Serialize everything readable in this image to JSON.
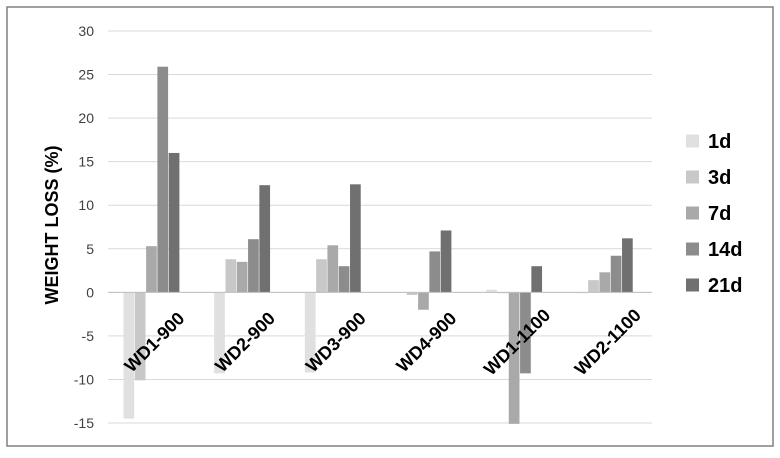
{
  "chart_data": {
    "type": "bar",
    "title": "",
    "xlabel": "",
    "ylabel": "WEIGHT LOSS (%)",
    "ylim": [
      -15,
      30
    ],
    "yticks": [
      -15,
      -10,
      -5,
      0,
      5,
      10,
      15,
      20,
      25,
      30
    ],
    "grid": true,
    "legend_position": "right",
    "categories": [
      "WD1-900",
      "WD2-900",
      "WD3-900",
      "WD4-900",
      "WD1-1100",
      "WD2-1100"
    ],
    "series": [
      {
        "name": "1d",
        "color": "#e0e0e0",
        "values": [
          -14.5,
          -9.3,
          -9.2,
          0,
          0.3,
          -0.1
        ]
      },
      {
        "name": "3d",
        "color": "#c8c8c8",
        "values": [
          -10.1,
          3.8,
          3.8,
          -0.3,
          -0.1,
          1.4
        ]
      },
      {
        "name": "7d",
        "color": "#a9a9a9",
        "values": [
          5.3,
          3.5,
          5.4,
          -2.0,
          -15.1,
          2.3
        ]
      },
      {
        "name": "14d",
        "color": "#8c8c8c",
        "values": [
          25.9,
          6.1,
          3.0,
          4.7,
          -9.3,
          4.2
        ]
      },
      {
        "name": "21d",
        "color": "#707070",
        "values": [
          16.0,
          12.3,
          12.4,
          7.1,
          3.0,
          6.2
        ]
      }
    ]
  }
}
